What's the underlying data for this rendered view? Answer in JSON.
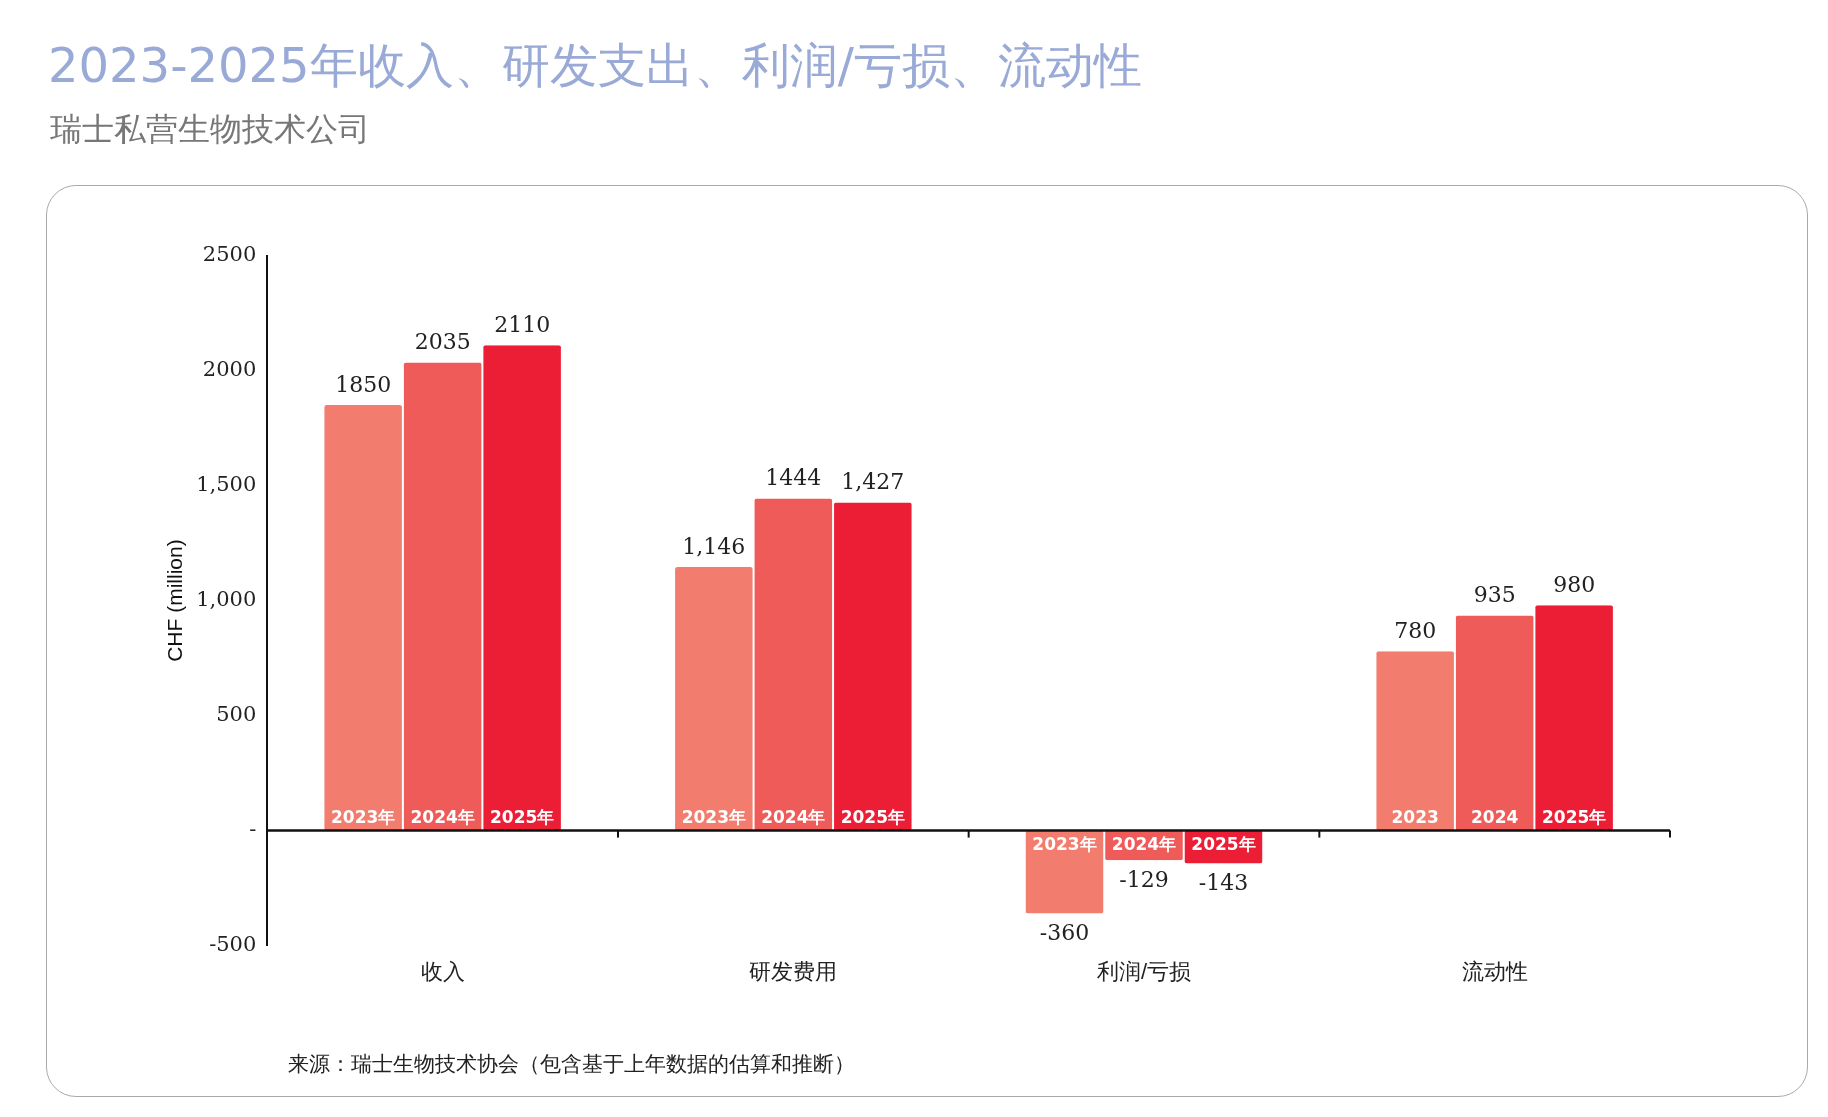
{
  "chart_data": {
    "type": "bar",
    "title": "2023-2025年收入、研发支出、利润/亏损、流动性",
    "subtitle": "瑞士私营生物技术公司",
    "ylabel": "CHF (million)",
    "categories": [
      "收入",
      "研发费用",
      "利润/亏损",
      "流动性"
    ],
    "series": [
      {
        "color": "#f27d6e",
        "values": [
          1850,
          1146,
          -360,
          780
        ],
        "value_labels": [
          "1850",
          "1,146",
          "-360",
          "780"
        ]
      },
      {
        "color": "#ef5b58",
        "values": [
          2035,
          1444,
          -129,
          935
        ],
        "value_labels": [
          "2035",
          "1444",
          "-129",
          "935"
        ]
      },
      {
        "color": "#ec1e35",
        "values": [
          2110,
          1427,
          -143,
          980
        ],
        "value_labels": [
          "2110",
          "1,427",
          "-143",
          "980"
        ]
      }
    ],
    "ylim": [
      -500,
      2500
    ],
    "yticks": [
      -500,
      {
        "value": 0,
        "label": "-"
      },
      500,
      {
        "value": 1000,
        "label": "1,000"
      },
      {
        "value": 1500,
        "label": "1,500"
      },
      2000,
      2500
    ],
    "grid": false,
    "legend": false,
    "ref_lines": [
      {
        "axis": "y",
        "value": 0
      }
    ],
    "annotations": [
      "2023年",
      "2024年",
      "2025年",
      "2023年",
      "2024年",
      "2025年",
      "2023年",
      "2024年",
      "2025年",
      "2023",
      "2024",
      "2025年",
      "来源：瑞士生物技术协会（包含基于上年数据的估算和推断）"
    ]
  }
}
